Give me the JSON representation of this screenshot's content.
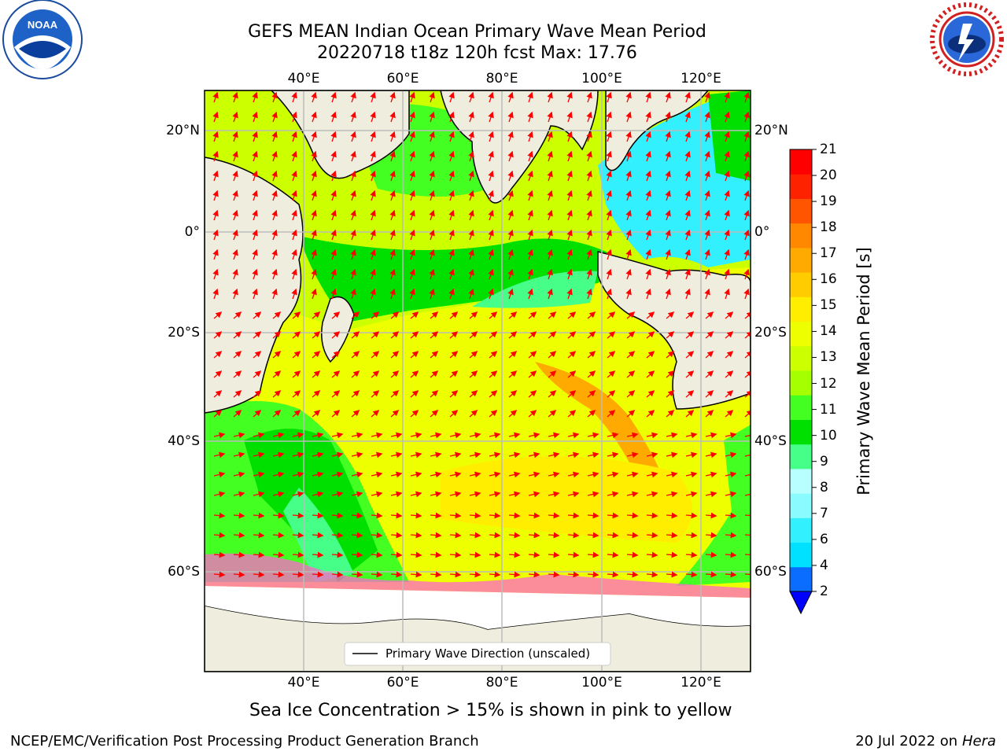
{
  "title": {
    "line1": "GEFS MEAN Indian Ocean Primary Wave Mean Period",
    "line2": "20220718 t18z 120h fcst   Max: 17.76"
  },
  "logos": {
    "left": {
      "icon": "noaa-logo-icon",
      "text": "NOAA"
    },
    "right": {
      "icon": "nws-logo-icon",
      "text": "NATIONAL WEATHER SERVICE"
    }
  },
  "axes": {
    "lon_ticks": [
      "40°E",
      "60°E",
      "80°E",
      "100°E",
      "120°E"
    ],
    "lat_ticks_left": [
      "20°N",
      "0°",
      "20°S",
      "40°S",
      "60°S"
    ],
    "lat_ticks_right": [
      "20°N",
      "0°",
      "20°S",
      "40°S",
      "60°S"
    ],
    "lon_range": [
      20,
      130
    ],
    "lat_range": [
      -75,
      27
    ],
    "grid": true
  },
  "legend": {
    "label": "Primary Wave Direction (unscaled)",
    "position": "bottom-center"
  },
  "colorbar": {
    "label": "Primary Wave Mean Period [s]",
    "levels": [
      "2",
      "4",
      "6",
      "7",
      "8",
      "9",
      "10",
      "11",
      "12",
      "13",
      "14",
      "15",
      "16",
      "17",
      "18",
      "19",
      "20",
      "21"
    ],
    "colors": [
      "#0a6dff",
      "#00e0ff",
      "#33f0ff",
      "#8afcff",
      "#b8ffff",
      "#46ff88",
      "#00e000",
      "#44ff22",
      "#a6ff00",
      "#ccff00",
      "#eeff00",
      "#ffee00",
      "#ffcc00",
      "#ffaa00",
      "#ff8800",
      "#ff5500",
      "#ff2200",
      "#ff0000"
    ],
    "extend_color": "#0000ff"
  },
  "colors": {
    "land": "#efeddd",
    "arrows": "#ff0000",
    "sea_ice": "#ff66cc",
    "grid": "#bbbbbb"
  },
  "caption": "Sea Ice Concentration > 15% is shown in pink to yellow",
  "footer": {
    "left": "NCEP/EMC/Verification Post Processing Product Generation Branch",
    "right_date": "20 Jul 2022 on ",
    "right_host": "Hera"
  }
}
